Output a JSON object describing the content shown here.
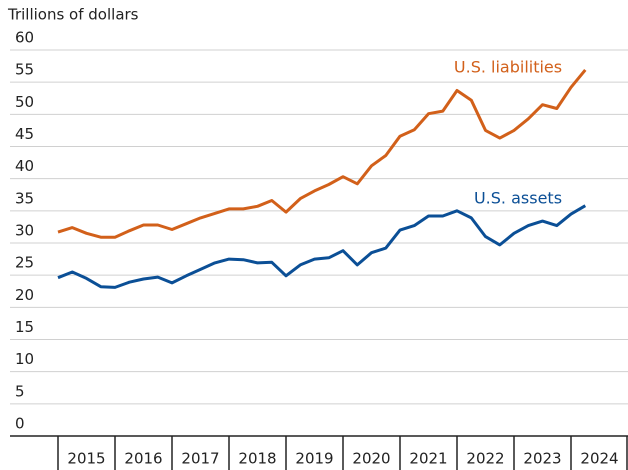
{
  "chart_data": {
    "type": "line",
    "title": "Trillions of dollars",
    "x_labels": [
      "2015",
      "2016",
      "2017",
      "2018",
      "2019",
      "2020",
      "2021",
      "2022",
      "2023",
      "2024"
    ],
    "points_per_label": 4,
    "series": [
      {
        "name": "U.S. liabilities",
        "color": "#d2601a",
        "values": [
          31.7,
          32.4,
          31.5,
          30.9,
          30.9,
          31.9,
          32.8,
          32.8,
          32.1,
          33.0,
          33.9,
          34.6,
          35.3,
          35.3,
          35.7,
          36.6,
          34.8,
          36.9,
          38.1,
          39.1,
          40.3,
          39.2,
          42.0,
          43.6,
          46.6,
          47.6,
          50.1,
          50.5,
          53.7,
          52.2,
          47.5,
          46.3,
          47.5,
          49.3,
          51.5,
          50.9,
          54.2,
          56.9
        ]
      },
      {
        "name": "U.S. assets",
        "color": "#0b4f96",
        "values": [
          24.6,
          25.5,
          24.5,
          23.2,
          23.1,
          23.9,
          24.4,
          24.7,
          23.8,
          24.9,
          25.9,
          26.9,
          27.5,
          27.4,
          26.9,
          27.0,
          24.9,
          26.6,
          27.5,
          27.7,
          28.8,
          26.6,
          28.5,
          29.2,
          32.0,
          32.7,
          34.2,
          34.2,
          35.0,
          33.9,
          31.0,
          29.7,
          31.5,
          32.7,
          33.4,
          32.7,
          34.5,
          35.8
        ]
      }
    ],
    "ylim": [
      0,
      60
    ],
    "yticks": [
      0,
      5,
      10,
      15,
      20,
      25,
      30,
      35,
      40,
      45,
      50,
      55,
      60
    ],
    "grid": true
  }
}
